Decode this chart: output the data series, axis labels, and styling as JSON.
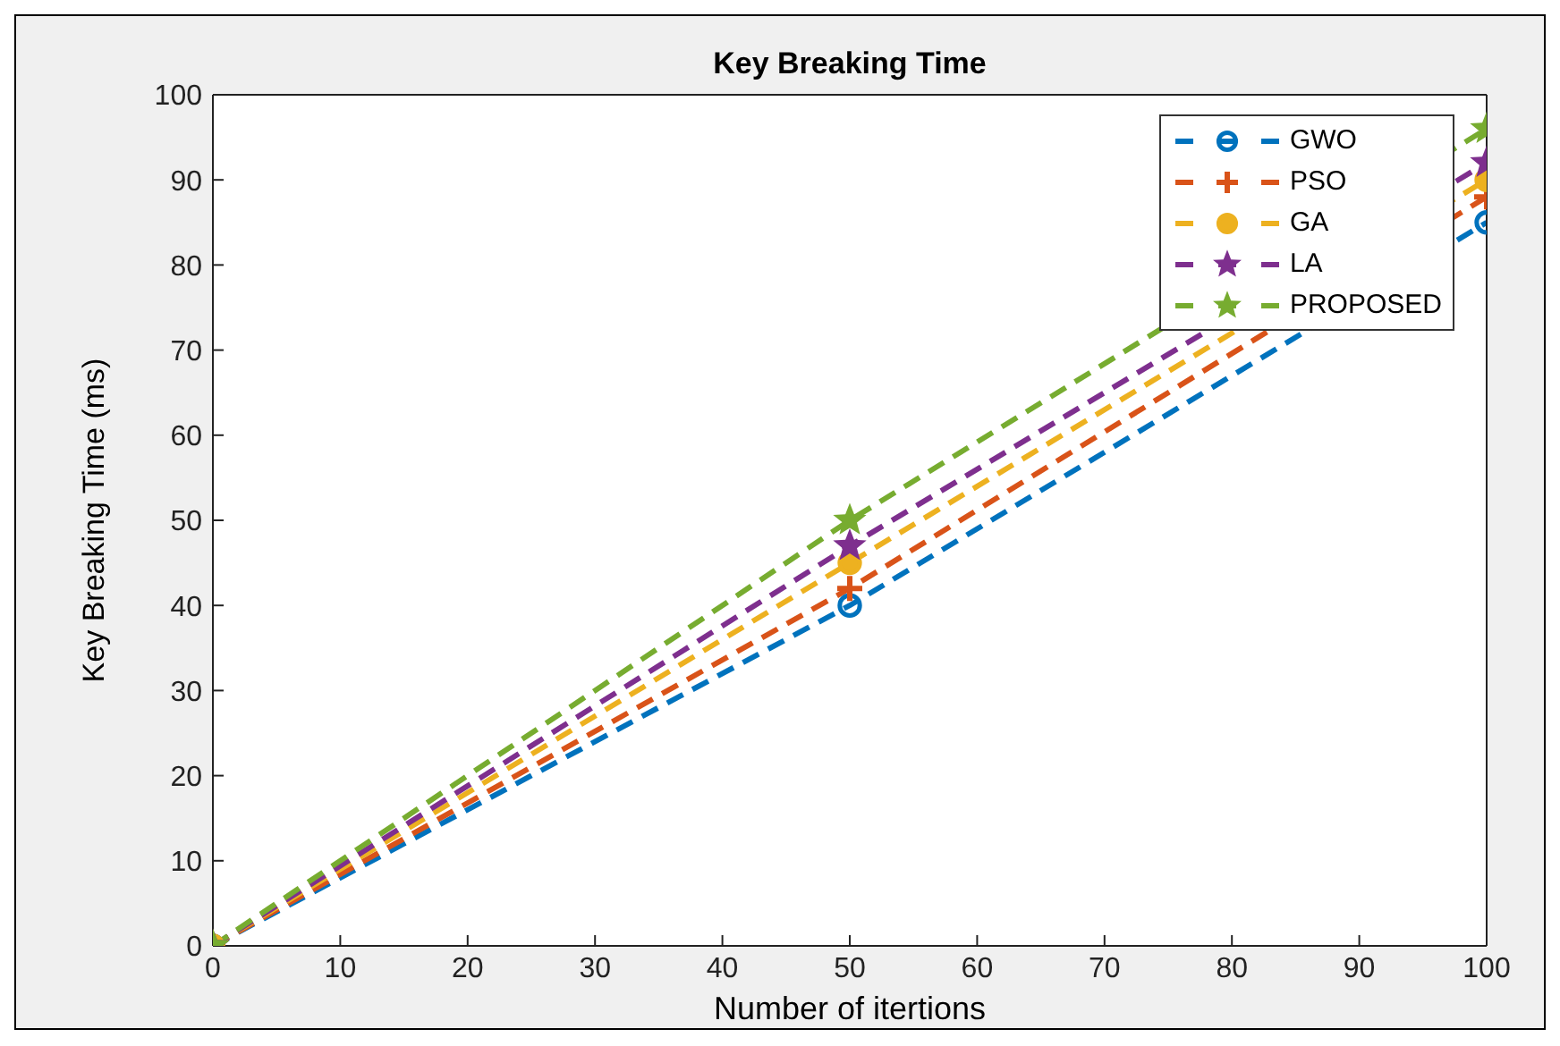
{
  "chart_data": {
    "type": "line",
    "title": "Key Breaking Time",
    "xlabel": "Number of itertions",
    "ylabel": "Key Breaking Time (ms)",
    "x": [
      0,
      50,
      100
    ],
    "series": [
      {
        "name": "GWO",
        "color": "#0072bd",
        "marker": "circle",
        "values": [
          0,
          40,
          85
        ]
      },
      {
        "name": "PSO",
        "color": "#d95319",
        "marker": "cross",
        "values": [
          0,
          42,
          88
        ]
      },
      {
        "name": "GA",
        "color": "#edb120",
        "marker": "circle",
        "values": [
          0,
          45,
          90
        ]
      },
      {
        "name": "LA",
        "color": "#7e2f8e",
        "marker": "star",
        "values": [
          0,
          47,
          92
        ]
      },
      {
        "name": "PROPOSED",
        "color": "#77ac30",
        "marker": "star",
        "values": [
          0,
          50,
          96
        ]
      }
    ],
    "xlim": [
      0,
      100
    ],
    "xticks": [
      0,
      10,
      20,
      30,
      40,
      50,
      60,
      70,
      80,
      90,
      100
    ],
    "ylim": [
      0,
      100
    ],
    "yticks": [
      0,
      10,
      20,
      30,
      40,
      50,
      60,
      70,
      80,
      90,
      100
    ],
    "grid": false,
    "legend": "top right",
    "line_style": "dashed"
  }
}
